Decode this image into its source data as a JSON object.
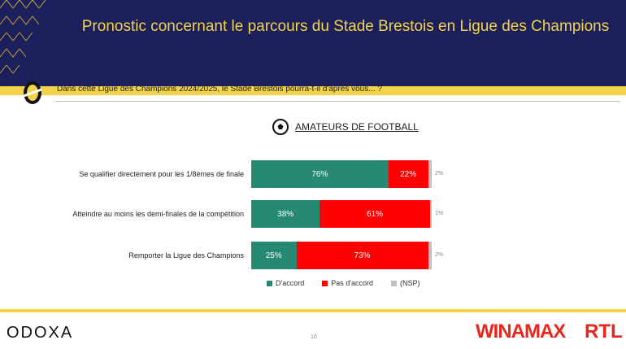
{
  "header": {
    "title": "Pronostic concernant le parcours du Stade Brestois en Ligue des Champions"
  },
  "question": "Dans cette Ligue des Champions 2024/2025, le Stade Brestois pourra-t-il d'après vous... ?",
  "footer": {
    "logo_left": "ODOXA",
    "page": "10",
    "logo_sponsor": "WINAMAX",
    "logo_media": "RTL"
  },
  "chart_data": {
    "type": "bar",
    "stacked": true,
    "orientation": "horizontal",
    "title": "AMATEURS DE FOOTBALL",
    "categories": [
      "Se qualifier directement pour les 1/8èmes de finale",
      "Atteindre au moins les demi-finales de la compétition",
      "Remporter la Ligue des Champions"
    ],
    "series": [
      {
        "name": "D'accord",
        "color": "#268a72",
        "values": [
          76,
          38,
          25
        ],
        "labels": [
          "76%",
          "38%",
          "25%"
        ]
      },
      {
        "name": "Pas d'accord",
        "color": "#ff0000",
        "values": [
          22,
          61,
          73
        ],
        "labels": [
          "22%",
          "61%",
          "73%"
        ]
      },
      {
        "name": "(NSP)",
        "color": "#c0c0c0",
        "values": [
          2,
          1,
          2
        ],
        "labels": [
          "2%",
          "1%",
          "2%"
        ]
      }
    ],
    "xlim": [
      0,
      100
    ],
    "legend": "bottom"
  }
}
